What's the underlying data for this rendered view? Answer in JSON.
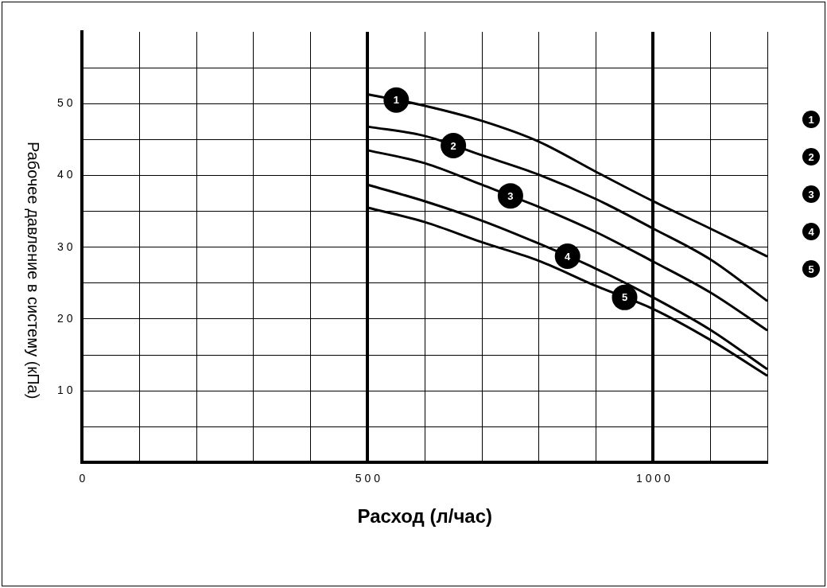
{
  "chart_data": {
    "type": "line",
    "xlabel": "Расход (л/час)",
    "ylabel": "Рабочее давление в систему (кПа)",
    "xlim": [
      0,
      1200
    ],
    "xticks": [
      0,
      {
        "value": 100,
        "label": null
      },
      {
        "value": 200,
        "label": null
      },
      {
        "value": 300,
        "label": null
      },
      {
        "value": 400,
        "label": null
      },
      500,
      {
        "value": 600,
        "label": null
      },
      {
        "value": 700,
        "label": null
      },
      {
        "value": 800,
        "label": null
      },
      {
        "value": 900,
        "label": null
      },
      1000,
      {
        "value": 1100,
        "label": null
      },
      {
        "value": 1200,
        "label": null
      }
    ],
    "ylim": [
      0,
      60
    ],
    "yticks": [
      {
        "value": 5,
        "label": null
      },
      10,
      {
        "value": 15,
        "label": null
      },
      20,
      {
        "value": 25,
        "label": null
      },
      30,
      {
        "value": 35,
        "label": null
      },
      40,
      {
        "value": 45,
        "label": null
      },
      50,
      {
        "value": 55,
        "label": null
      }
    ],
    "x": [
      500,
      600,
      700,
      800,
      900,
      1000,
      1100,
      1200
    ],
    "series": [
      {
        "name": "1",
        "color": "#000000",
        "values": [
          51.3,
          49.7,
          47.6,
          44.7,
          40.5,
          36.4,
          32.6,
          28.7
        ]
      },
      {
        "name": "2",
        "color": "#000000",
        "values": [
          46.8,
          45.5,
          42.8,
          40.1,
          36.7,
          32.6,
          28.3,
          22.5
        ]
      },
      {
        "name": "3",
        "color": "#000000",
        "values": [
          43.5,
          41.7,
          38.7,
          35.6,
          32.1,
          28.0,
          23.7,
          18.4
        ]
      },
      {
        "name": "4",
        "color": "#000000",
        "values": [
          38.7,
          36.4,
          33.7,
          30.5,
          27.0,
          23.0,
          18.5,
          13.0
        ]
      },
      {
        "name": "5",
        "color": "#000000",
        "values": [
          35.5,
          33.5,
          30.7,
          28.1,
          24.6,
          21.4,
          17.1,
          12.1
        ]
      }
    ],
    "grid": true,
    "legend": "right",
    "marker": "none",
    "line_style": "solid"
  }
}
